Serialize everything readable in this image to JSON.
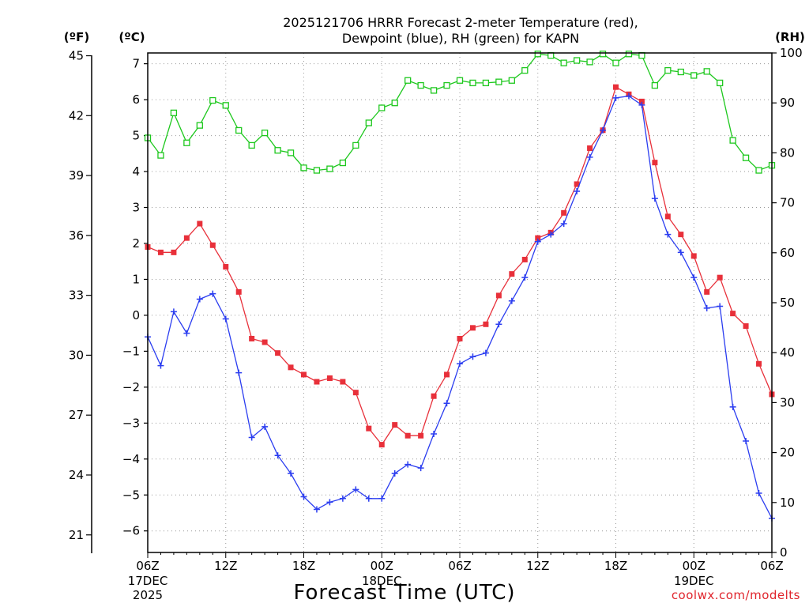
{
  "chart_data": {
    "type": "line",
    "title_line1": "2025121706 HRRR Forecast 2-meter Temperature (red),",
    "title_line2": "Dewpoint (blue), RH (green) for KAPN",
    "xlabel": "Forecast Time (UTC)",
    "credit": "coolwx.com/modelts",
    "left_outer_unit": "(ºF)",
    "left_inner_unit": "(ºC)",
    "right_unit": "(RH)",
    "x_range_hours": [
      0,
      48
    ],
    "celsius_range": [
      -6.6,
      7.3
    ],
    "rh_range": [
      0,
      100
    ],
    "celsius_ticks": [
      7,
      6,
      5,
      4,
      3,
      2,
      1,
      0,
      -1,
      -2,
      -3,
      -4,
      -5,
      -6
    ],
    "celsius_tick_labels": [
      "7",
      "6",
      "5",
      "4",
      "3",
      "2",
      "1",
      "0",
      "−1",
      "−2",
      "−3",
      "−4",
      "−5",
      "−6"
    ],
    "fahrenheit_ticks": [
      45,
      42,
      39,
      36,
      33,
      30,
      27,
      24,
      21
    ],
    "fahrenheit_tick_labels": [
      "45",
      "42",
      "39",
      "36",
      "33",
      "30",
      "27",
      "24",
      "21"
    ],
    "rh_ticks": [
      100,
      90,
      80,
      70,
      60,
      50,
      40,
      30,
      20,
      10,
      0
    ],
    "rh_tick_labels": [
      "100",
      "90",
      "80",
      "70",
      "60",
      "50",
      "40",
      "30",
      "20",
      "10",
      "0"
    ],
    "x_ticks": [
      {
        "hour": 0,
        "label": "06Z",
        "date": "17DEC",
        "year": "2025"
      },
      {
        "hour": 6,
        "label": "12Z"
      },
      {
        "hour": 12,
        "label": "18Z"
      },
      {
        "hour": 18,
        "label": "00Z",
        "date": "18DEC"
      },
      {
        "hour": 24,
        "label": "06Z"
      },
      {
        "hour": 30,
        "label": "12Z"
      },
      {
        "hour": 36,
        "label": "18Z"
      },
      {
        "hour": 42,
        "label": "00Z",
        "date": "19DEC"
      },
      {
        "hour": 48,
        "label": "06Z"
      }
    ],
    "series": [
      {
        "name": "Temperature",
        "axis": "celsius",
        "color": "#e8303a",
        "marker": "filled-square",
        "values": [
          1.9,
          1.75,
          1.75,
          2.15,
          2.55,
          1.95,
          1.35,
          0.65,
          -0.65,
          -0.75,
          -1.05,
          -1.45,
          -1.65,
          -1.85,
          -1.75,
          -1.85,
          -2.15,
          -3.15,
          -3.6,
          -3.05,
          -3.35,
          -3.35,
          -2.25,
          -1.65,
          -0.65,
          -0.35,
          -0.25,
          0.55,
          1.15,
          1.55,
          2.15,
          2.3,
          2.85,
          3.65,
          4.65,
          5.15,
          6.35,
          6.15,
          5.95,
          4.25,
          2.75,
          2.25,
          1.65,
          0.65,
          1.05,
          0.05,
          -0.3,
          -1.35,
          -2.2
        ],
        "last_value_label": ""
      },
      {
        "name": "Dewpoint",
        "axis": "celsius",
        "color": "#2b3df0",
        "marker": "plus",
        "values": [
          -0.6,
          -1.4,
          0.1,
          -0.5,
          0.45,
          0.6,
          -0.1,
          -1.6,
          -3.4,
          -3.1,
          -3.9,
          -4.4,
          -5.05,
          -5.4,
          -5.2,
          -5.1,
          -4.85,
          -5.1,
          -5.1,
          -4.4,
          -4.15,
          -4.25,
          -3.3,
          -2.45,
          -1.35,
          -1.15,
          -1.05,
          -0.25,
          0.4,
          1.05,
          2.05,
          2.25,
          2.55,
          3.45,
          4.4,
          5.15,
          6.05,
          6.1,
          5.85,
          3.25,
          2.25,
          1.75,
          1.05,
          0.2,
          0.25,
          -2.55,
          -3.5,
          -4.95,
          -5.65
        ]
      },
      {
        "name": "RH",
        "axis": "rh",
        "color": "#1ec81e",
        "marker": "open-square",
        "values": [
          83,
          79.5,
          88,
          82,
          85.5,
          90.5,
          89.5,
          84.5,
          81.5,
          84,
          80.5,
          80,
          77,
          76.5,
          76.8,
          78,
          81.5,
          86,
          89,
          90,
          94.5,
          93.5,
          92.5,
          93.5,
          94.5,
          94,
          94,
          94.2,
          94.5,
          96.5,
          99.8,
          99.5,
          98,
          98.5,
          98.2,
          99.8,
          98,
          99.8,
          99.5,
          93.5,
          96.5,
          96.2,
          95.5,
          96.3,
          94,
          82.5,
          79,
          76.5,
          77.5
        ]
      }
    ]
  }
}
